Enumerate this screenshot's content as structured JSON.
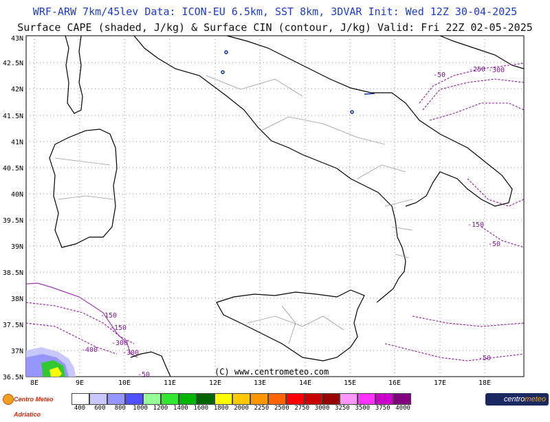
{
  "header": {
    "line1": "WRF-ARW 7km/45lev  Data: ICON-EU 6.5km, SST 8km, 3DVAR  Init: Wed 12Z 30-04-2025",
    "line2": "Surface CAPE (shaded, J/kg) & Surface CIN (contour, J/kg)  Valid: Fri 22Z 02-05-2025"
  },
  "axes": {
    "lat_labels": [
      "43N",
      "42.5N",
      "42N",
      "41.5N",
      "41N",
      "40.5N",
      "40N",
      "39.5N",
      "39N",
      "38.5N",
      "38N",
      "37.5N",
      "37N",
      "36.5N"
    ],
    "lon_labels": [
      "8E",
      "9E",
      "10E",
      "11E",
      "12E",
      "13E",
      "14E",
      "15E",
      "16E",
      "17E",
      "18E"
    ]
  },
  "cin_contour_labels": [
    "-50",
    "-250",
    "-300",
    "-150",
    "-50",
    "-150",
    "-150",
    "-400",
    "-300",
    "-300",
    "-50",
    "-50"
  ],
  "copyright": "(C) www.centrometeo.com",
  "legend": {
    "values": [
      "400",
      "600",
      "800",
      "1000",
      "1200",
      "1400",
      "1600",
      "1800",
      "2000",
      "2250",
      "2500",
      "2750",
      "3000",
      "3250",
      "3500",
      "3750",
      "4000"
    ],
    "colors": [
      "#ffffff",
      "#c8c8ff",
      "#9696ff",
      "#5050ff",
      "#96ff96",
      "#32e632",
      "#00b400",
      "#006400",
      "#ffff00",
      "#ffc800",
      "#ff9600",
      "#ff6400",
      "#ff0000",
      "#c80000",
      "#960000",
      "#ff96ff",
      "#ff32ff",
      "#c800c8",
      "#800080"
    ]
  },
  "logos": {
    "left": "Centro Meteo Adriatico",
    "right_a": "centro",
    "right_b": "meteo"
  }
}
